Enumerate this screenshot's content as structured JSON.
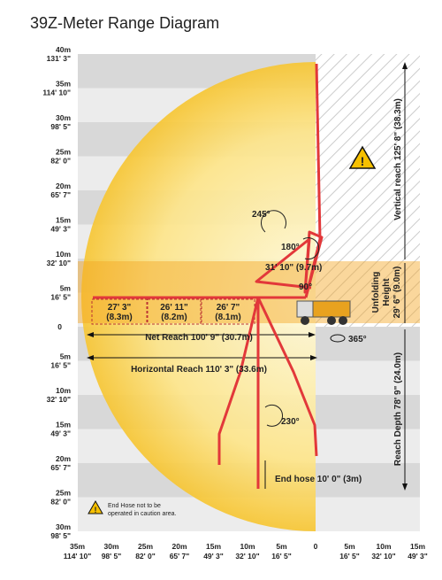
{
  "title": "39Z-Meter Range Diagram",
  "y_axis": [
    {
      "m": "40m",
      "ft": "131' 3\""
    },
    {
      "m": "35m",
      "ft": "114' 10\""
    },
    {
      "m": "30m",
      "ft": "98' 5\""
    },
    {
      "m": "25m",
      "ft": "82' 0\""
    },
    {
      "m": "20m",
      "ft": "65' 7\""
    },
    {
      "m": "15m",
      "ft": "49' 3\""
    },
    {
      "m": "10m",
      "ft": "32' 10\""
    },
    {
      "m": "5m",
      "ft": "16' 5\""
    },
    {
      "m": "0"
    },
    {
      "m": "5m",
      "ft": "16' 5\""
    },
    {
      "m": "10m",
      "ft": "32' 10\""
    },
    {
      "m": "15m",
      "ft": "49' 3\""
    },
    {
      "m": "20m",
      "ft": "65' 7\""
    },
    {
      "m": "25m",
      "ft": "82' 0\""
    },
    {
      "m": "30m",
      "ft": "98' 5\""
    }
  ],
  "x_axis": [
    {
      "m": "35m",
      "ft": "114' 10\""
    },
    {
      "m": "30m",
      "ft": "98' 5\""
    },
    {
      "m": "25m",
      "ft": "82' 0\""
    },
    {
      "m": "20m",
      "ft": "65' 7\""
    },
    {
      "m": "15m",
      "ft": "49' 3\""
    },
    {
      "m": "10m",
      "ft": "32' 10\""
    },
    {
      "m": "5m",
      "ft": "16' 5\""
    },
    {
      "m": "0"
    },
    {
      "m": "5m",
      "ft": "16' 5\""
    },
    {
      "m": "10m",
      "ft": "32' 10\""
    },
    {
      "m": "15m",
      "ft": "49' 3\""
    }
  ],
  "labels": {
    "vertical_reach": "Vertical reach 125' 8\" (38.3m)",
    "unfolding_height": [
      "Unfolding",
      "Height",
      "29' 6\" (9.0m)"
    ],
    "reach_depth": "Reach Depth 78' 9\" (24.0m)",
    "net_reach": "Net Reach 100' 9\" (30.7m)",
    "horizontal_reach": "Horizontal Reach 110' 3\" (33.6m)",
    "rotation": "365°",
    "end_hose": "End hose 10' 0\"  (3m)",
    "caution": [
      "End Hose not to be",
      "operated in caution area."
    ],
    "angles": {
      "a245": "245°",
      "a180": "180°",
      "a90": "90°",
      "a230": "230°"
    },
    "fold_reach": "31' 10\" (9.7m)",
    "segments": [
      {
        "ft": "27' 3\"",
        "m": "(8.3m)"
      },
      {
        "ft": "26' 11\"",
        "m": "(8.2m)"
      },
      {
        "ft": "26' 7\"",
        "m": "(8.1m)"
      }
    ]
  }
}
